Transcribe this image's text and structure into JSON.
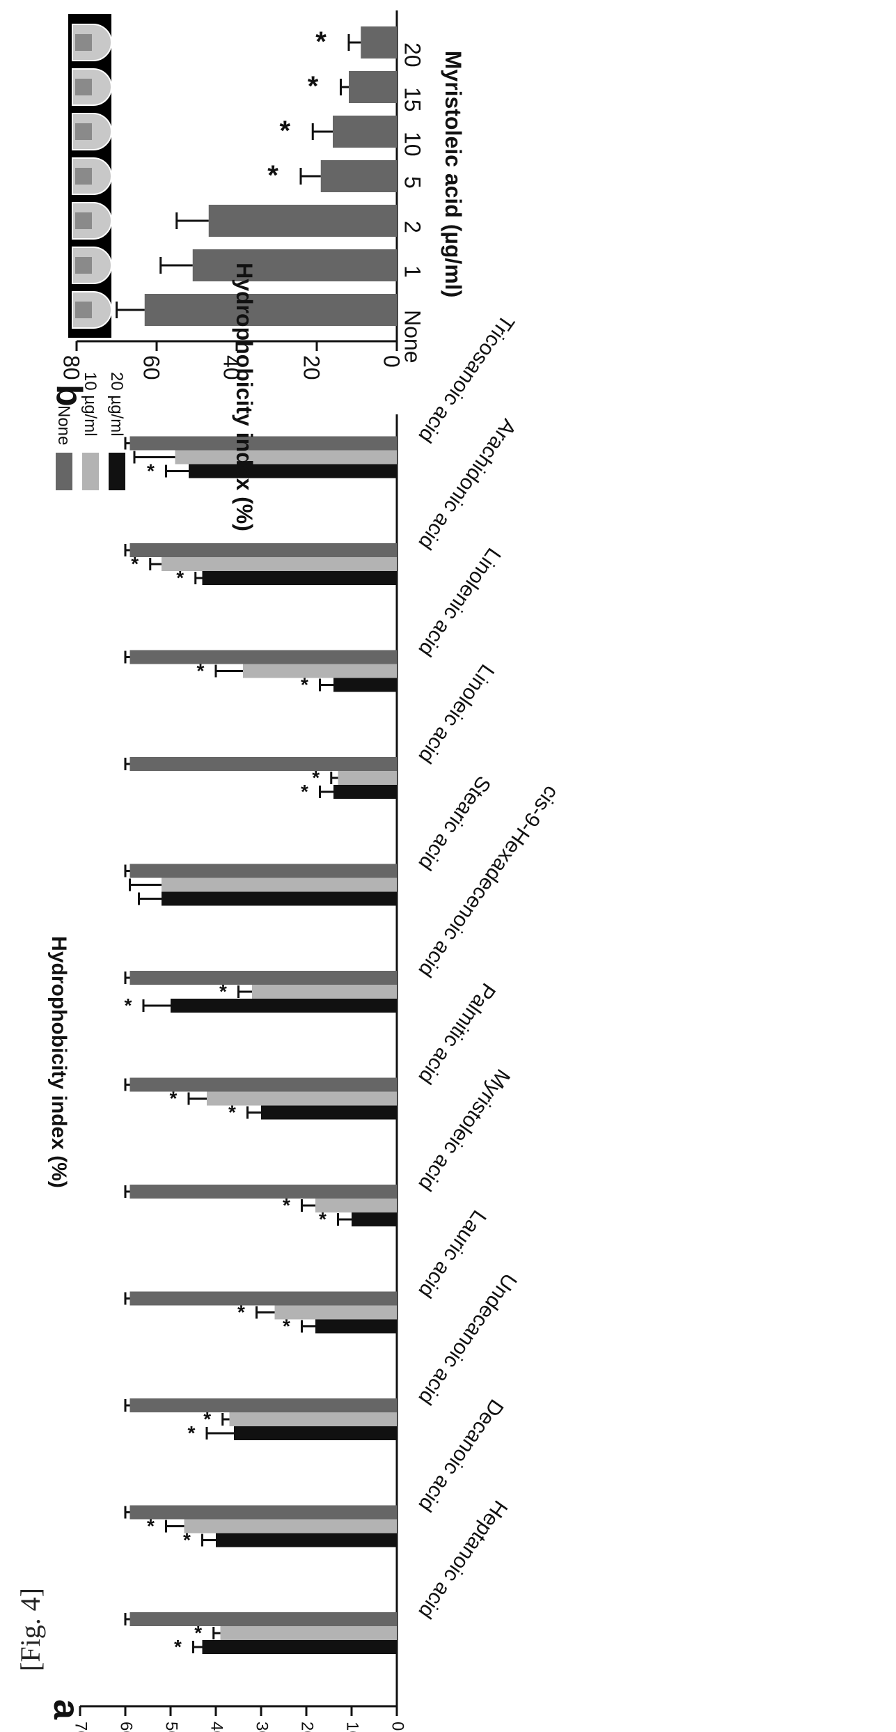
{
  "figure_label": "[Fig. 4]",
  "chart_data": [
    {
      "panel": "a",
      "type": "bar",
      "ylabel": "Hydrophobicity index (%)",
      "ylim": [
        0,
        70
      ],
      "yticks": [
        0,
        10,
        20,
        30,
        40,
        50,
        60,
        70
      ],
      "categories": [
        "Heptanoic acid",
        "Decanoic acid",
        "Undecanoic acid",
        "Lauric acid",
        "Myristoleic acid",
        "Palmitic acid",
        "cis-9-Hexadecenoic acid",
        "Stearic acid",
        "Linoleic acid",
        "Linolenic acid",
        "Arachidonic acid",
        "Tricosanoic acid"
      ],
      "legend_position": "top-right",
      "series": [
        {
          "name": "None",
          "color": "#666666",
          "values": [
            59,
            59,
            59,
            59,
            59,
            59,
            59,
            59,
            59,
            59,
            59,
            59
          ],
          "errors": [
            1,
            1,
            1,
            1,
            1,
            1,
            1,
            1,
            1,
            1,
            1,
            1
          ],
          "significant": [
            false,
            false,
            false,
            false,
            false,
            false,
            false,
            false,
            false,
            false,
            false,
            false
          ]
        },
        {
          "name": "10 µg/ml",
          "color": "#b3b3b3",
          "values": [
            39,
            47,
            37,
            27,
            18,
            42,
            32,
            52,
            13,
            34,
            52,
            49
          ],
          "errors": [
            1.5,
            4,
            1.5,
            4,
            3,
            4,
            3,
            7,
            1.5,
            6,
            2.5,
            9
          ],
          "significant": [
            true,
            true,
            true,
            true,
            true,
            true,
            true,
            false,
            true,
            true,
            true,
            false
          ]
        },
        {
          "name": "20 µg/ml",
          "color": "#111111",
          "values": [
            43,
            40,
            36,
            18,
            10,
            30,
            50,
            52,
            14,
            14,
            43,
            46
          ],
          "errors": [
            2,
            3,
            6,
            3,
            3,
            3,
            6,
            5,
            3,
            3,
            1.5,
            5
          ],
          "significant": [
            true,
            true,
            true,
            true,
            true,
            true,
            true,
            false,
            true,
            true,
            true,
            true
          ]
        }
      ]
    },
    {
      "panel": "b",
      "type": "bar",
      "xlabel": "Myristoleic acid (µg/ml)",
      "ylabel": "Hydrophobicity index (%)",
      "ylim": [
        0,
        80
      ],
      "yticks": [
        0,
        20,
        40,
        60,
        80
      ],
      "categories": [
        "None",
        "1",
        "2",
        "5",
        "10",
        "15",
        "20"
      ],
      "series": [
        {
          "color": "#666666",
          "values": [
            63,
            51,
            47,
            19,
            16,
            12,
            9
          ],
          "errors": [
            7,
            8,
            8,
            5,
            5,
            2,
            3
          ],
          "significant": [
            false,
            false,
            false,
            true,
            true,
            true,
            true
          ]
        }
      ]
    }
  ],
  "tube_strip": {
    "count": 7
  }
}
